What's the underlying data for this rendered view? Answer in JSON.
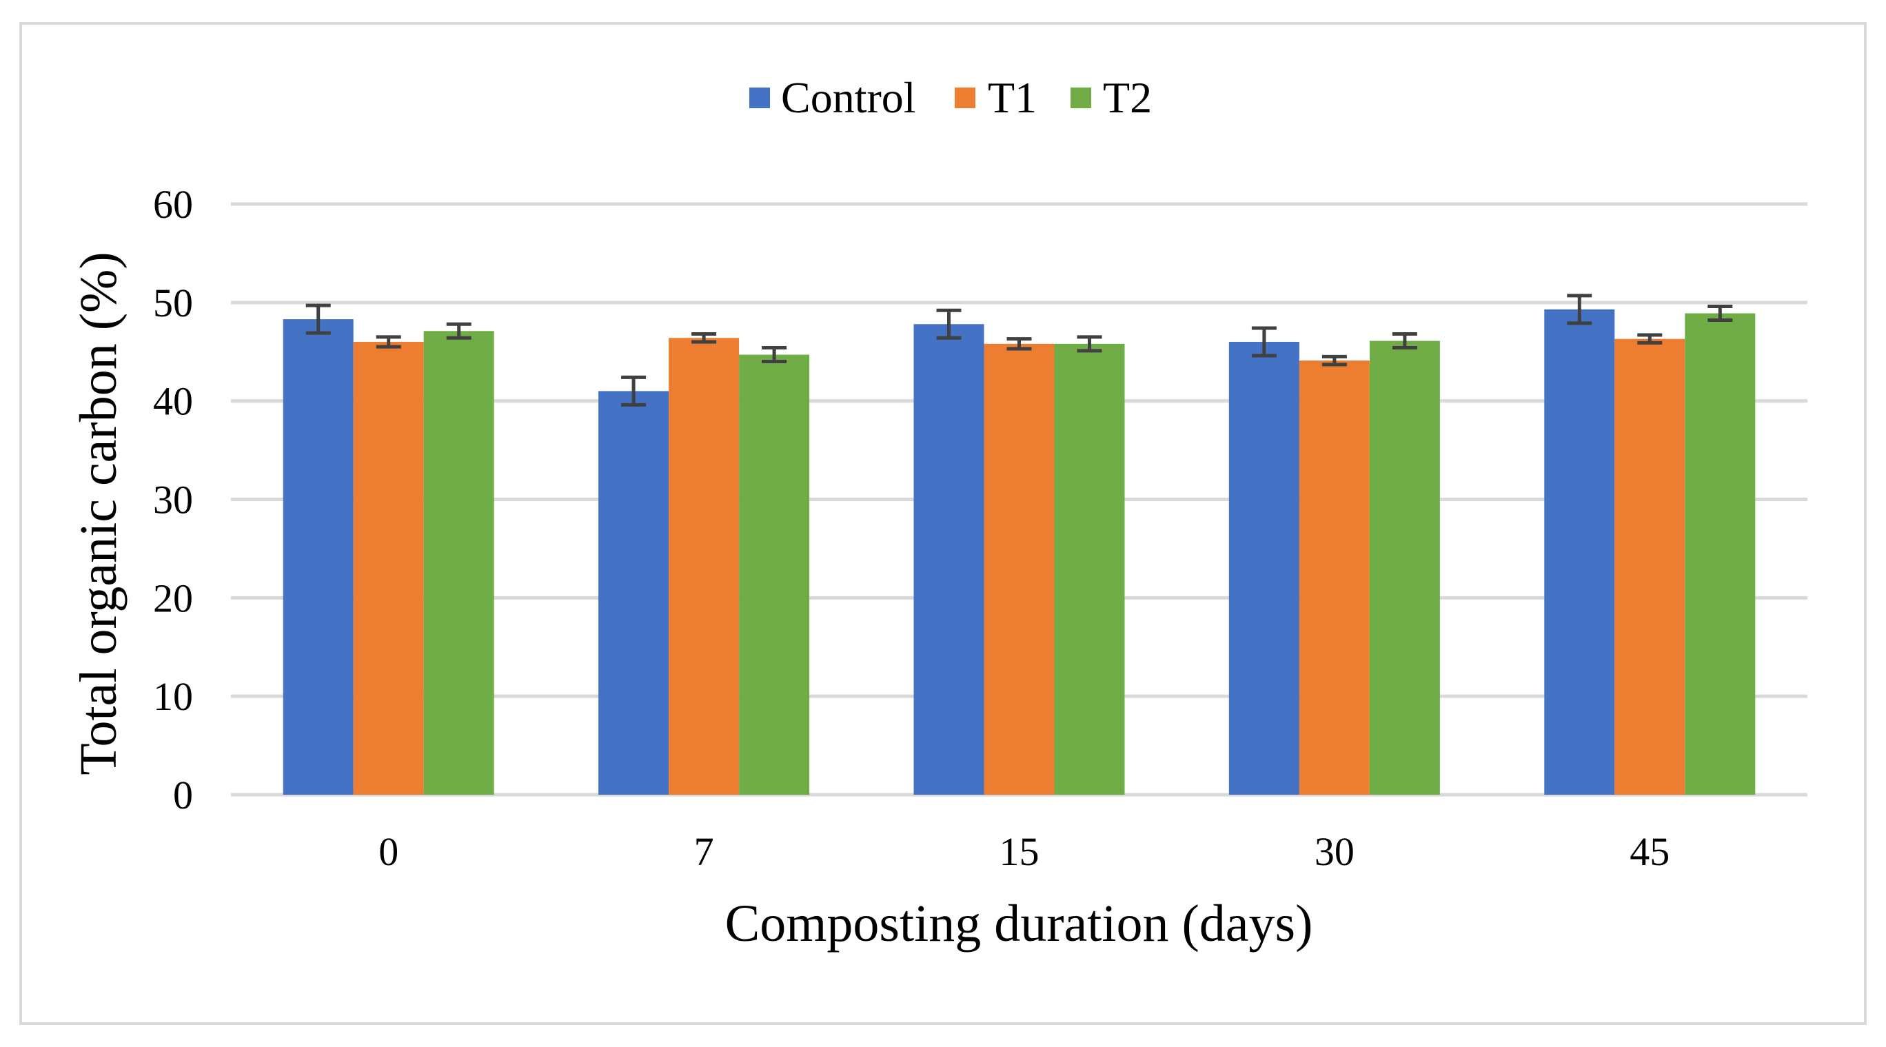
{
  "chart_data": {
    "type": "bar",
    "categories": [
      "0",
      "7",
      "15",
      "30",
      "45"
    ],
    "series": [
      {
        "name": "Control",
        "color": "#4472C4",
        "values": [
          48.3,
          41.0,
          47.8,
          46.0,
          49.3
        ],
        "errors": [
          1.4,
          1.4,
          1.4,
          1.4,
          1.4
        ]
      },
      {
        "name": "T1",
        "color": "#ED7D31",
        "values": [
          46.0,
          46.4,
          45.8,
          44.1,
          46.3
        ],
        "errors": [
          0.5,
          0.4,
          0.5,
          0.4,
          0.4
        ]
      },
      {
        "name": "T2",
        "color": "#70AD47",
        "values": [
          47.1,
          44.7,
          45.8,
          46.1,
          48.9
        ],
        "errors": [
          0.7,
          0.7,
          0.7,
          0.7,
          0.7
        ]
      }
    ],
    "title": "",
    "xlabel": "Composting duration (days)",
    "ylabel": "Total organic carbon (%)",
    "ylim": [
      0,
      60
    ],
    "yticks": [
      "0",
      "10",
      "20",
      "30",
      "40",
      "50",
      "60"
    ],
    "grid": true,
    "legend_position": "top-center",
    "gridline_color": "#d9d9d9",
    "errorbar_color": "#404040"
  }
}
